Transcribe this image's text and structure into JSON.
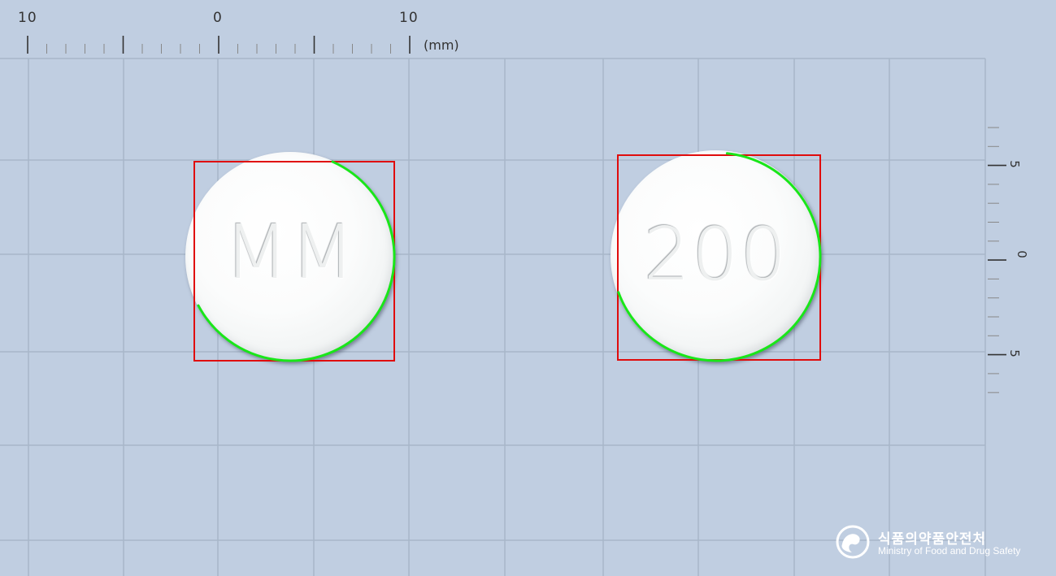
{
  "top_scale": {
    "labels": [
      "10",
      "0",
      "10"
    ],
    "unit": "(mm)"
  },
  "right_scale": {
    "labels": [
      "5",
      "0",
      "5"
    ]
  },
  "tablets": [
    {
      "imprint": "MM"
    },
    {
      "imprint": "200"
    }
  ],
  "logo": {
    "korean": "식품의약품안전처",
    "english": "Ministry of Food and Drug Safety"
  },
  "colors": {
    "background": "#c0cee1",
    "grid": "#a7b6c9",
    "bounding_box": "#e00c0c",
    "contour": "#19e619",
    "tablet": "#fafbfb"
  }
}
